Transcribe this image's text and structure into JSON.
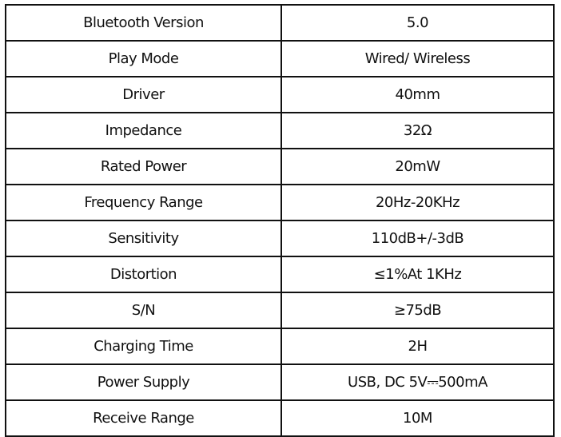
{
  "specs": [
    {
      "label": "Bluetooth Version",
      "value": "5.0"
    },
    {
      "label": "Play Mode",
      "value": "Wired/ Wireless"
    },
    {
      "label": "Driver",
      "value": "40mm"
    },
    {
      "label": "Impedance",
      "value": "32Ω"
    },
    {
      "label": "Rated Power",
      "value": "20mW"
    },
    {
      "label": "Frequency Range",
      "value": "20Hz-20KHz"
    },
    {
      "label": "Sensitivity",
      "value": "110dB+/-3dB"
    },
    {
      "label": "Distortion",
      "value": "≤1%At 1KHz"
    },
    {
      "label": "S/N",
      "value": "≥75dB"
    },
    {
      "label": "Charging Time",
      "value": "2H"
    },
    {
      "label": "Power Supply",
      "value": "USB, DC 5V⎓500mA"
    },
    {
      "label": "Receive Range",
      "value": "10M"
    }
  ]
}
